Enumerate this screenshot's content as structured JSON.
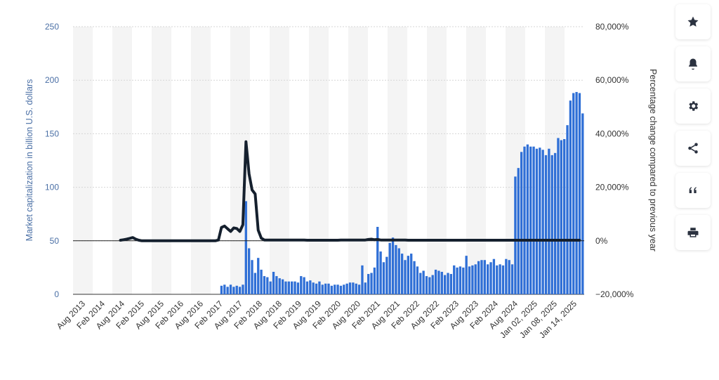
{
  "chart_data": {
    "type": "bar+line",
    "ylabel": "Market capitalization in billion U.S. dollars",
    "y2label": "Percentage change compared to previous year",
    "ylim": [
      0,
      250
    ],
    "y2lim": [
      -20000,
      80000
    ],
    "yticks": [
      "0",
      "50",
      "100",
      "150",
      "200",
      "250"
    ],
    "y2ticks": [
      "−20,000%",
      "0%",
      "20,000%",
      "40,000%",
      "60,000%",
      "80,000%"
    ],
    "xtick_labels": [
      "Aug 2013",
      "Feb 2014",
      "Aug 2014",
      "Feb 2015",
      "Aug 2015",
      "Feb 2016",
      "Aug 2016",
      "Feb 2017",
      "Aug 2017",
      "Feb 2018",
      "Aug 2018",
      "Feb 2019",
      "Aug 2019",
      "Feb 2020",
      "Aug 2020",
      "Feb 2021",
      "Aug 2021",
      "Feb 2022",
      "Aug 2022",
      "Feb 2023",
      "Aug 2023",
      "Feb 2024",
      "Aug 2024",
      "Jan 02, 2025",
      "Jan 08, 2025",
      "Jan 14, 2025"
    ],
    "grid": true,
    "colors": {
      "bars": "#2f6fd6",
      "line": "#15202e",
      "grid": "#d6d6d6",
      "band": "#f4f4f4"
    },
    "series": [
      {
        "type": "bar",
        "axis": "left",
        "values": [
          0,
          0,
          0,
          0,
          0,
          0,
          0,
          0,
          0,
          0,
          0,
          0,
          0,
          0,
          0,
          0,
          0,
          0,
          0,
          0,
          0,
          0,
          0,
          0,
          0,
          0,
          0,
          0,
          0,
          0,
          0,
          0,
          0,
          0,
          0,
          0,
          0,
          0,
          0,
          0,
          0,
          0,
          0,
          0,
          0,
          0,
          0,
          0,
          8,
          9,
          7,
          9,
          7,
          8,
          7,
          9,
          87,
          43,
          32,
          20,
          34,
          23,
          17,
          16,
          12,
          21,
          17,
          15,
          14,
          12,
          12,
          12,
          12,
          11,
          17,
          16,
          12,
          13,
          11,
          10,
          12,
          9,
          10,
          10,
          8,
          9,
          9,
          8,
          9,
          10,
          11,
          11,
          10,
          9,
          27,
          11,
          19,
          20,
          25,
          63,
          40,
          30,
          35,
          48,
          53,
          46,
          43,
          38,
          32,
          36,
          38,
          31,
          26,
          20,
          22,
          17,
          16,
          18,
          23,
          22,
          21,
          18,
          20,
          19,
          27,
          25,
          26,
          25,
          36,
          26,
          27,
          28,
          31,
          32,
          32,
          28,
          30,
          33,
          27,
          28,
          27,
          33,
          32,
          28,
          110,
          118,
          133,
          138,
          140,
          138,
          138,
          136,
          137,
          135,
          130,
          136,
          130,
          132,
          146,
          144,
          145,
          158,
          181,
          188,
          189,
          188,
          169
        ]
      },
      {
        "type": "line",
        "axis": "right",
        "values": [
          0,
          0,
          0,
          0,
          0,
          0,
          0,
          0,
          0,
          0,
          0,
          0,
          0,
          0,
          0,
          200,
          400,
          600,
          900,
          1200,
          600,
          200,
          0,
          0,
          0,
          0,
          0,
          0,
          0,
          0,
          0,
          0,
          0,
          0,
          0,
          0,
          0,
          0,
          0,
          0,
          0,
          0,
          0,
          0,
          0,
          0,
          0,
          300,
          5000,
          5500,
          4500,
          3500,
          4800,
          4600,
          3500,
          6000,
          37000,
          25000,
          19000,
          17500,
          4000,
          1000,
          300,
          300,
          300,
          300,
          300,
          300,
          300,
          300,
          300,
          300,
          300,
          300,
          300,
          300,
          200,
          200,
          200,
          200,
          200,
          200,
          200,
          200,
          200,
          200,
          200,
          300,
          300,
          300,
          300,
          300,
          300,
          300,
          300,
          300,
          500,
          600,
          400,
          500,
          300,
          300,
          300,
          300,
          300,
          300,
          300,
          300,
          300,
          200,
          200,
          200,
          200,
          200,
          200,
          200,
          200,
          200,
          200,
          200,
          200,
          200,
          200,
          200,
          200,
          200,
          200,
          200,
          200,
          200,
          200,
          200,
          200,
          200,
          200,
          200,
          200,
          200,
          200,
          200,
          200,
          200,
          200,
          200,
          200,
          200,
          200,
          200,
          200,
          200,
          200,
          200,
          200,
          200,
          200,
          200,
          200,
          200,
          200,
          200,
          200,
          200,
          200,
          200,
          200,
          200
        ]
      }
    ]
  },
  "toolbar": [
    {
      "name": "favorite-button",
      "icon": "star-icon"
    },
    {
      "name": "notification-button",
      "icon": "bell-icon"
    },
    {
      "name": "settings-button",
      "icon": "gear-icon"
    },
    {
      "name": "share-button",
      "icon": "share-icon"
    },
    {
      "name": "cite-button",
      "icon": "quote-icon"
    },
    {
      "name": "print-button",
      "icon": "printer-icon"
    }
  ]
}
